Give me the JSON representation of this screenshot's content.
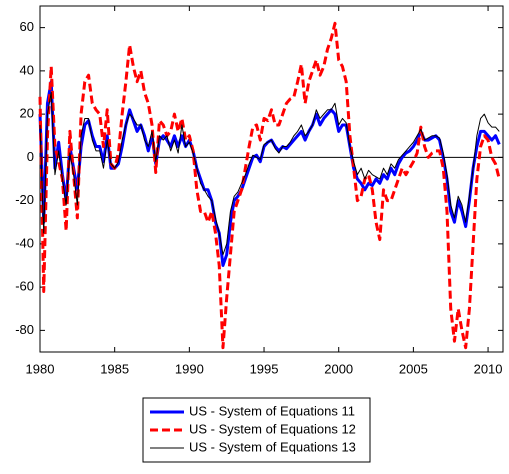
{
  "chart_data": {
    "type": "line",
    "x": [
      1980.0,
      1980.25,
      1980.5,
      1980.75,
      1981.0,
      1981.25,
      1981.5,
      1981.75,
      1982.0,
      1982.25,
      1982.5,
      1982.75,
      1983.0,
      1983.25,
      1983.5,
      1983.75,
      1984.0,
      1984.25,
      1984.5,
      1984.75,
      1985.0,
      1985.25,
      1985.5,
      1985.75,
      1986.0,
      1986.25,
      1986.5,
      1986.75,
      1987.0,
      1987.25,
      1987.5,
      1987.75,
      1988.0,
      1988.25,
      1988.5,
      1988.75,
      1989.0,
      1989.25,
      1989.5,
      1989.75,
      1990.0,
      1990.25,
      1990.5,
      1990.75,
      1991.0,
      1991.25,
      1991.5,
      1991.75,
      1992.0,
      1992.25,
      1992.5,
      1992.75,
      1993.0,
      1993.25,
      1993.5,
      1993.75,
      1994.0,
      1994.25,
      1994.5,
      1994.75,
      1995.0,
      1995.25,
      1995.5,
      1995.75,
      1996.0,
      1996.25,
      1996.5,
      1996.75,
      1997.0,
      1997.25,
      1997.5,
      1997.75,
      1998.0,
      1998.25,
      1998.5,
      1998.75,
      1999.0,
      1999.25,
      1999.5,
      1999.75,
      2000.0,
      2000.25,
      2000.5,
      2000.75,
      2001.0,
      2001.25,
      2001.5,
      2001.75,
      2002.0,
      2002.25,
      2002.5,
      2002.75,
      2003.0,
      2003.25,
      2003.5,
      2003.75,
      2004.0,
      2004.25,
      2004.5,
      2004.75,
      2005.0,
      2005.25,
      2005.5,
      2005.75,
      2006.0,
      2006.25,
      2006.5,
      2006.75,
      2007.0,
      2007.25,
      2007.5,
      2007.75,
      2008.0,
      2008.25,
      2008.5,
      2008.75,
      2009.0,
      2009.25,
      2009.5,
      2009.75,
      2010.0,
      2010.25,
      2010.5,
      2010.75
    ],
    "series": [
      {
        "name": "US - System of Equations 11",
        "color": "#0000ff",
        "width": 3,
        "dashed": false,
        "values": [
          20,
          -30,
          25,
          35,
          -5,
          7,
          -8,
          -20,
          5,
          -5,
          -15,
          5,
          15,
          17,
          10,
          5,
          5,
          -2,
          10,
          -5,
          -5,
          -3,
          5,
          15,
          22,
          17,
          12,
          15,
          10,
          3,
          10,
          -3,
          8,
          10,
          8,
          5,
          10,
          5,
          10,
          5,
          8,
          3,
          -5,
          -10,
          -15,
          -15,
          -20,
          -30,
          -35,
          -50,
          -45,
          -30,
          -20,
          -18,
          -15,
          -10,
          -5,
          0,
          1,
          -2,
          5,
          7,
          8,
          5,
          3,
          5,
          4,
          6,
          8,
          10,
          12,
          8,
          12,
          15,
          20,
          15,
          18,
          20,
          22,
          20,
          12,
          15,
          15,
          5,
          -5,
          -10,
          -12,
          -15,
          -12,
          -13,
          -10,
          -12,
          -8,
          -10,
          -5,
          -8,
          -3,
          0,
          2,
          3,
          5,
          8,
          12,
          8,
          8,
          9,
          10,
          8,
          0,
          -10,
          -25,
          -30,
          -20,
          -25,
          -32,
          -20,
          -5,
          5,
          12,
          12,
          10,
          8,
          10,
          6
        ]
      },
      {
        "name": "US - System of Equations 12",
        "color": "#ff0000",
        "width": 3,
        "dashed": true,
        "values": [
          28,
          -62,
          10,
          42,
          5,
          -2,
          -10,
          -34,
          12,
          -8,
          -28,
          20,
          35,
          38,
          25,
          22,
          20,
          5,
          22,
          -3,
          -5,
          2,
          20,
          35,
          52,
          42,
          35,
          40,
          30,
          25,
          15,
          -7,
          17,
          15,
          10,
          12,
          20,
          12,
          18,
          8,
          10,
          3,
          -15,
          -25,
          -25,
          -30,
          -25,
          -35,
          -50,
          -88,
          -65,
          -45,
          -25,
          -20,
          -15,
          -5,
          5,
          14,
          15,
          8,
          18,
          17,
          22,
          15,
          15,
          20,
          25,
          27,
          28,
          35,
          43,
          25,
          35,
          40,
          45,
          38,
          42,
          50,
          55,
          62,
          45,
          42,
          35,
          10,
          -5,
          -20,
          -18,
          -10,
          -8,
          -15,
          -30,
          -38,
          -15,
          -20,
          -20,
          -15,
          -10,
          -5,
          -8,
          -5,
          -2,
          2,
          14,
          5,
          0,
          2,
          3,
          3,
          -5,
          -25,
          -70,
          -85,
          -70,
          -80,
          -88,
          -70,
          -40,
          -10,
          5,
          10,
          8,
          0,
          -3,
          -10
        ]
      },
      {
        "name": "US - System of Equations 13",
        "color": "#000000",
        "width": 1,
        "dashed": false,
        "values": [
          15,
          -35,
          20,
          30,
          -8,
          3,
          -10,
          -22,
          2,
          -8,
          -22,
          10,
          18,
          18,
          8,
          3,
          3,
          -5,
          8,
          -3,
          -5,
          -2,
          8,
          15,
          20,
          18,
          15,
          15,
          8,
          5,
          12,
          -2,
          10,
          8,
          10,
          3,
          8,
          2,
          15,
          5,
          7,
          2,
          -5,
          -12,
          -15,
          -18,
          -20,
          -28,
          -35,
          -45,
          -40,
          -25,
          -18,
          -16,
          -12,
          -8,
          -3,
          1,
          0,
          -1,
          6,
          7,
          8,
          4,
          2,
          5,
          5,
          7,
          10,
          12,
          15,
          10,
          12,
          15,
          22,
          18,
          20,
          22,
          22,
          25,
          15,
          18,
          16,
          5,
          -2,
          -8,
          -5,
          -10,
          -6,
          -8,
          -9,
          -10,
          -5,
          -8,
          -3,
          -5,
          -1,
          1,
          3,
          5,
          7,
          10,
          13,
          8,
          9,
          10,
          10,
          9,
          2,
          -8,
          -22,
          -28,
          -18,
          -22,
          -30,
          -18,
          -5,
          10,
          18,
          20,
          16,
          14,
          14,
          12
        ]
      }
    ],
    "xlim": [
      1980,
      2011
    ],
    "ylim": [
      -90,
      70
    ],
    "xticks": [
      1980,
      1985,
      1990,
      1995,
      2000,
      2005,
      2010
    ],
    "yticks": [
      -80,
      -60,
      -40,
      -20,
      0,
      20,
      40,
      60
    ],
    "zero_line": true,
    "legend": "bottom"
  }
}
